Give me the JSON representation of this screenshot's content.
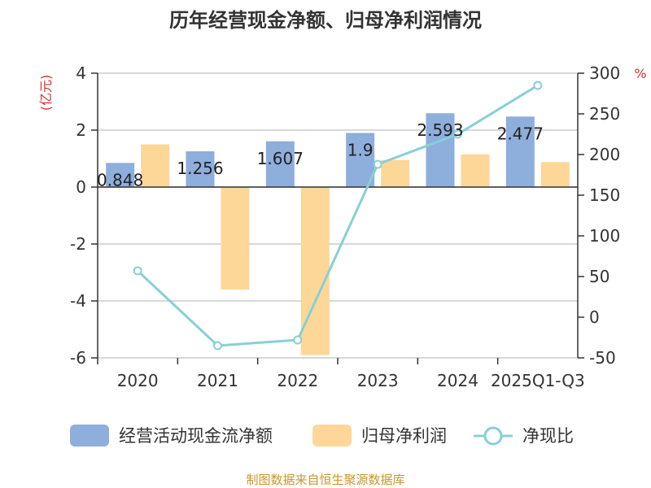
{
  "colors": {
    "bar_primary": "#8eaedc",
    "bar_secondary": "#fdd798",
    "line": "#86d0d6",
    "axis": "#333333",
    "grid": "#cccccc",
    "unit_red": "#d23030",
    "source_gold": "#c7962f"
  },
  "chart_data": {
    "type": "bar",
    "title": "历年经营现金净额、归母净利润情况",
    "categories": [
      "2020",
      "2021",
      "2022",
      "2023",
      "2024",
      "2025Q1-Q3"
    ],
    "series": [
      {
        "name": "经营活动现金流净额",
        "type": "bar",
        "axis": "left",
        "values": [
          0.848,
          1.256,
          1.607,
          1.9,
          2.593,
          2.477
        ]
      },
      {
        "name": "归母净利润",
        "type": "bar",
        "axis": "left",
        "values": [
          1.5,
          -3.6,
          -5.9,
          0.95,
          1.15,
          0.88
        ]
      },
      {
        "name": "净现比",
        "type": "line",
        "axis": "right",
        "values": [
          57,
          -35,
          -28,
          188,
          225,
          285
        ]
      }
    ],
    "data_labels": [
      "0.848",
      "1.256",
      "1.607",
      "1.9",
      "2.593",
      "2.477"
    ],
    "y_left": {
      "unit": "(亿元)",
      "ylim": [
        -6,
        4
      ],
      "ticks": [
        "4",
        "2",
        "0",
        "-2",
        "-4",
        "-6"
      ]
    },
    "y_right": {
      "unit": "%",
      "ylim": [
        -50,
        300
      ],
      "ticks": [
        "300",
        "250",
        "200",
        "150",
        "100",
        "50",
        "0",
        "-50"
      ]
    },
    "grid": true,
    "legend_position": "bottom"
  },
  "footer": {
    "source": "制图数据来自恒生聚源数据库"
  }
}
